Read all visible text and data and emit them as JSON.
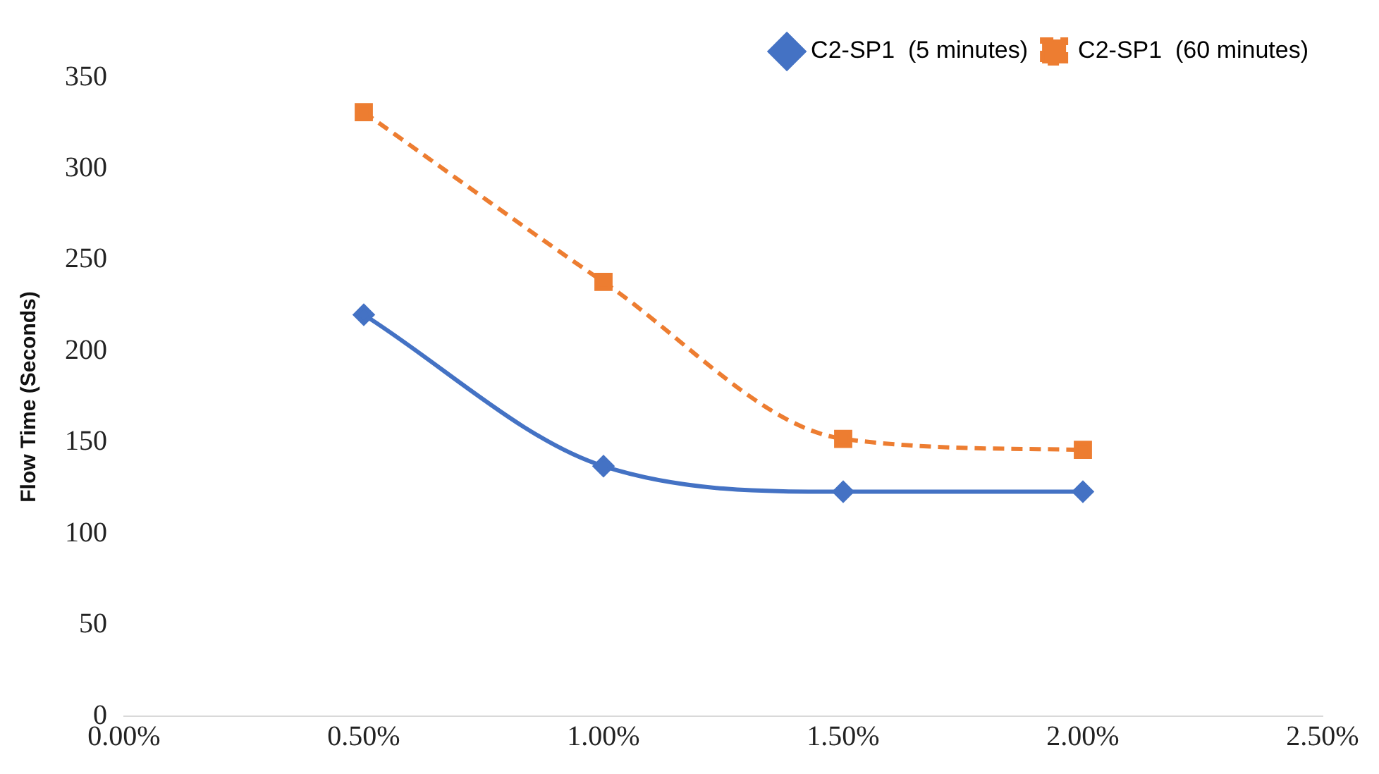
{
  "chart_data": {
    "type": "line",
    "ylabel": "Flow Time (Seconds)",
    "x": [
      0.5,
      1.0,
      1.5,
      2.0
    ],
    "series": [
      {
        "name": "C2-SP1  (5 minutes)",
        "color": "#4472c4",
        "values": [
          220,
          137,
          123,
          123
        ],
        "marker": "diamond",
        "line_style": "solid"
      },
      {
        "name": "C2-SP1  (60 minutes)",
        "color": "#ed7d31",
        "values": [
          331,
          238,
          152,
          146
        ],
        "marker": "square",
        "line_style": "dashed"
      }
    ],
    "xlim": [
      0,
      2.5
    ],
    "xticks": [
      {
        "value": 0,
        "label": "0.00%"
      },
      {
        "value": 0.5,
        "label": "0.50%"
      },
      {
        "value": 1,
        "label": "1.00%"
      },
      {
        "value": 1.5,
        "label": "1.50%"
      },
      {
        "value": 2,
        "label": "2.00%"
      },
      {
        "value": 2.5,
        "label": "2.50%"
      }
    ],
    "ylim": [
      0,
      350
    ],
    "yticks": [
      0,
      50,
      100,
      150,
      200,
      250,
      300,
      350
    ],
    "grid": false,
    "legend": "top right"
  }
}
